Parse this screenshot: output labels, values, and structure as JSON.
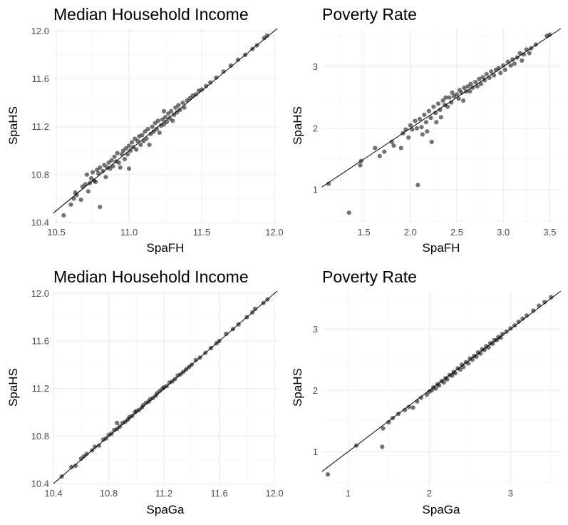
{
  "point_color": "#000000",
  "ref_line_color": "#000000",
  "chart_data": [
    {
      "type": "scatter",
      "title": "Median Household Income",
      "xlabel": "SpaFH",
      "ylabel": "SpaHS",
      "xlim": [
        10.48,
        12.02
      ],
      "ylim": [
        10.4,
        12.02
      ],
      "xticks": [
        10.5,
        11.0,
        11.5,
        12.0
      ],
      "xtick_labels": [
        "10.5",
        "11.0",
        "11.5",
        "12.0"
      ],
      "yticks": [
        10.4,
        10.8,
        11.2,
        11.6,
        12.0
      ],
      "ytick_labels": [
        "10.4",
        "10.8",
        "11.2",
        "11.6",
        "12.0"
      ],
      "reference_line": "y = x",
      "points": [
        [
          10.55,
          10.46
        ],
        [
          10.6,
          10.55
        ],
        [
          10.62,
          10.6
        ],
        [
          10.63,
          10.65
        ],
        [
          10.64,
          10.63
        ],
        [
          10.67,
          10.59
        ],
        [
          10.68,
          10.7
        ],
        [
          10.7,
          10.72
        ],
        [
          10.71,
          10.8
        ],
        [
          10.72,
          10.66
        ],
        [
          10.73,
          10.73
        ],
        [
          10.74,
          10.77
        ],
        [
          10.75,
          10.82
        ],
        [
          10.76,
          10.75
        ],
        [
          10.77,
          10.74
        ],
        [
          10.78,
          10.84
        ],
        [
          10.79,
          10.81
        ],
        [
          10.8,
          10.86
        ],
        [
          10.8,
          10.53
        ],
        [
          10.82,
          10.83
        ],
        [
          10.83,
          10.88
        ],
        [
          10.84,
          10.78
        ],
        [
          10.85,
          10.86
        ],
        [
          10.86,
          10.9
        ],
        [
          10.87,
          10.85
        ],
        [
          10.88,
          10.92
        ],
        [
          10.89,
          10.87
        ],
        [
          10.9,
          10.95
        ],
        [
          10.91,
          10.91
        ],
        [
          10.92,
          10.98
        ],
        [
          10.93,
          10.9
        ],
        [
          10.94,
          10.86
        ],
        [
          10.95,
          10.97
        ],
        [
          10.96,
          11.0
        ],
        [
          10.97,
          10.93
        ],
        [
          10.98,
          11.02
        ],
        [
          10.99,
          10.97
        ],
        [
          11.0,
          11.04
        ],
        [
          11.0,
          10.85
        ],
        [
          11.01,
          11.0
        ],
        [
          11.02,
          11.07
        ],
        [
          11.03,
          11.03
        ],
        [
          11.04,
          11.1
        ],
        [
          11.05,
          11.01
        ],
        [
          11.06,
          11.08
        ],
        [
          11.07,
          11.12
        ],
        [
          11.08,
          11.05
        ],
        [
          11.09,
          11.13
        ],
        [
          11.1,
          11.08
        ],
        [
          11.11,
          11.16
        ],
        [
          11.12,
          11.1
        ],
        [
          11.13,
          11.18
        ],
        [
          11.14,
          11.05
        ],
        [
          11.15,
          11.14
        ],
        [
          11.16,
          11.2
        ],
        [
          11.17,
          11.16
        ],
        [
          11.18,
          11.23
        ],
        [
          11.19,
          11.18
        ],
        [
          11.2,
          11.25
        ],
        [
          11.21,
          11.15
        ],
        [
          11.22,
          11.21
        ],
        [
          11.23,
          11.26
        ],
        [
          11.24,
          11.22
        ],
        [
          11.24,
          11.33
        ],
        [
          11.25,
          11.28
        ],
        [
          11.26,
          11.24
        ],
        [
          11.27,
          11.31
        ],
        [
          11.28,
          11.27
        ],
        [
          11.29,
          11.33
        ],
        [
          11.3,
          11.25
        ],
        [
          11.31,
          11.3
        ],
        [
          11.32,
          11.36
        ],
        [
          11.33,
          11.32
        ],
        [
          11.34,
          11.38
        ],
        [
          11.35,
          11.34
        ],
        [
          11.37,
          11.4
        ],
        [
          11.38,
          11.36
        ],
        [
          11.4,
          11.42
        ],
        [
          11.42,
          11.44
        ],
        [
          11.44,
          11.46
        ],
        [
          11.46,
          11.47
        ],
        [
          11.48,
          11.5
        ],
        [
          11.5,
          11.51
        ],
        [
          11.53,
          11.54
        ],
        [
          11.56,
          11.57
        ],
        [
          11.6,
          11.61
        ],
        [
          11.65,
          11.66
        ],
        [
          11.7,
          11.71
        ],
        [
          11.75,
          11.76
        ],
        [
          11.8,
          11.8
        ],
        [
          11.85,
          11.85
        ],
        [
          11.88,
          11.88
        ],
        [
          11.93,
          11.94
        ],
        [
          11.95,
          11.96
        ]
      ]
    },
    {
      "type": "scatter",
      "title": "Poverty Rate",
      "xlabel": "SpaFH",
      "ylabel": "SpaHS",
      "xlim": [
        1.05,
        3.62
      ],
      "ylim": [
        0.47,
        3.62
      ],
      "xticks": [
        1.5,
        2.0,
        2.5,
        3.0,
        3.5
      ],
      "xtick_labels": [
        "1.5",
        "2.0",
        "2.5",
        "3.0",
        "3.5"
      ],
      "yticks": [
        1,
        2,
        3
      ],
      "ytick_labels": [
        "1",
        "2",
        "3"
      ],
      "reference_line": "y = x",
      "points": [
        [
          1.12,
          1.1
        ],
        [
          1.34,
          0.63
        ],
        [
          1.46,
          1.4
        ],
        [
          1.47,
          1.47
        ],
        [
          1.62,
          1.68
        ],
        [
          1.67,
          1.55
        ],
        [
          1.72,
          1.62
        ],
        [
          1.8,
          1.78
        ],
        [
          1.82,
          1.72
        ],
        [
          1.9,
          1.68
        ],
        [
          1.92,
          1.92
        ],
        [
          1.95,
          1.98
        ],
        [
          1.98,
          1.85
        ],
        [
          2.0,
          2.05
        ],
        [
          2.02,
          1.98
        ],
        [
          2.05,
          2.12
        ],
        [
          2.07,
          2.0
        ],
        [
          2.08,
          1.08
        ],
        [
          2.1,
          2.15
        ],
        [
          2.12,
          2.02
        ],
        [
          2.13,
          1.9
        ],
        [
          2.15,
          2.22
        ],
        [
          2.17,
          2.1
        ],
        [
          2.18,
          1.95
        ],
        [
          2.2,
          2.28
        ],
        [
          2.22,
          2.17
        ],
        [
          2.23,
          1.78
        ],
        [
          2.25,
          2.35
        ],
        [
          2.27,
          2.25
        ],
        [
          2.28,
          2.1
        ],
        [
          2.3,
          2.4
        ],
        [
          2.32,
          2.3
        ],
        [
          2.33,
          2.18
        ],
        [
          2.35,
          2.45
        ],
        [
          2.37,
          2.38
        ],
        [
          2.38,
          2.5
        ],
        [
          2.4,
          2.35
        ],
        [
          2.42,
          2.5
        ],
        [
          2.44,
          2.42
        ],
        [
          2.45,
          2.58
        ],
        [
          2.47,
          2.52
        ],
        [
          2.5,
          2.55
        ],
        [
          2.52,
          2.48
        ],
        [
          2.53,
          2.62
        ],
        [
          2.55,
          2.58
        ],
        [
          2.57,
          2.45
        ],
        [
          2.58,
          2.66
        ],
        [
          2.6,
          2.6
        ],
        [
          2.62,
          2.68
        ],
        [
          2.64,
          2.6
        ],
        [
          2.65,
          2.72
        ],
        [
          2.67,
          2.66
        ],
        [
          2.7,
          2.75
        ],
        [
          2.72,
          2.68
        ],
        [
          2.74,
          2.8
        ],
        [
          2.76,
          2.72
        ],
        [
          2.78,
          2.83
        ],
        [
          2.8,
          2.78
        ],
        [
          2.82,
          2.88
        ],
        [
          2.85,
          2.82
        ],
        [
          2.87,
          2.92
        ],
        [
          2.9,
          2.86
        ],
        [
          2.92,
          2.95
        ],
        [
          2.95,
          2.98
        ],
        [
          2.97,
          2.9
        ],
        [
          3.0,
          3.02
        ],
        [
          3.02,
          2.95
        ],
        [
          3.05,
          3.08
        ],
        [
          3.08,
          3.02
        ],
        [
          3.1,
          3.12
        ],
        [
          3.12,
          3.05
        ],
        [
          3.15,
          3.15
        ],
        [
          3.18,
          3.22
        ],
        [
          3.2,
          3.1
        ],
        [
          3.22,
          3.2
        ],
        [
          3.25,
          3.28
        ],
        [
          3.28,
          3.22
        ],
        [
          3.3,
          3.3
        ],
        [
          3.35,
          3.36
        ],
        [
          3.47,
          3.5
        ],
        [
          3.5,
          3.52
        ]
      ]
    },
    {
      "type": "scatter",
      "title": "Median Household Income",
      "xlabel": "SpaGa",
      "ylabel": "SpaHS",
      "xlim": [
        10.4,
        12.02
      ],
      "ylim": [
        10.4,
        12.02
      ],
      "xticks": [
        10.4,
        10.8,
        11.2,
        11.6,
        12.0
      ],
      "xtick_labels": [
        "10.4",
        "10.8",
        "11.2",
        "11.6",
        "12.0"
      ],
      "yticks": [
        10.4,
        10.8,
        11.2,
        11.6,
        12.0
      ],
      "ytick_labels": [
        "10.4",
        "10.8",
        "11.2",
        "11.6",
        "12.0"
      ],
      "reference_line": "y = x",
      "points": [
        [
          10.46,
          10.46
        ],
        [
          10.53,
          10.54
        ],
        [
          10.56,
          10.55
        ],
        [
          10.6,
          10.61
        ],
        [
          10.62,
          10.63
        ],
        [
          10.64,
          10.65
        ],
        [
          10.68,
          10.68
        ],
        [
          10.7,
          10.71
        ],
        [
          10.73,
          10.72
        ],
        [
          10.76,
          10.77
        ],
        [
          10.78,
          10.78
        ],
        [
          10.8,
          10.81
        ],
        [
          10.82,
          10.82
        ],
        [
          10.84,
          10.85
        ],
        [
          10.86,
          10.86
        ],
        [
          10.86,
          10.91
        ],
        [
          10.88,
          10.88
        ],
        [
          10.9,
          10.91
        ],
        [
          10.92,
          10.92
        ],
        [
          10.94,
          10.94
        ],
        [
          10.95,
          10.96
        ],
        [
          10.97,
          10.97
        ],
        [
          10.99,
          11.0
        ],
        [
          11.0,
          11.01
        ],
        [
          11.02,
          11.02
        ],
        [
          11.04,
          11.04
        ],
        [
          11.05,
          11.06
        ],
        [
          11.07,
          11.08
        ],
        [
          11.09,
          11.09
        ],
        [
          11.1,
          11.11
        ],
        [
          11.12,
          11.12
        ],
        [
          11.14,
          11.14
        ],
        [
          11.15,
          11.16
        ],
        [
          11.17,
          11.18
        ],
        [
          11.19,
          11.2
        ],
        [
          11.2,
          11.21
        ],
        [
          11.22,
          11.22
        ],
        [
          11.24,
          11.25
        ],
        [
          11.26,
          11.26
        ],
        [
          11.28,
          11.28
        ],
        [
          11.3,
          11.31
        ],
        [
          11.32,
          11.32
        ],
        [
          11.34,
          11.34
        ],
        [
          11.36,
          11.36
        ],
        [
          11.38,
          11.38
        ],
        [
          11.4,
          11.4
        ],
        [
          11.43,
          11.44
        ],
        [
          11.46,
          11.46
        ],
        [
          11.5,
          11.5
        ],
        [
          11.54,
          11.54
        ],
        [
          11.58,
          11.58
        ],
        [
          11.6,
          11.6
        ],
        [
          11.65,
          11.66
        ],
        [
          11.7,
          11.7
        ],
        [
          11.74,
          11.74
        ],
        [
          11.8,
          11.8
        ],
        [
          11.84,
          11.84
        ],
        [
          11.86,
          11.87
        ],
        [
          11.92,
          11.92
        ],
        [
          11.95,
          11.95
        ]
      ]
    },
    {
      "type": "scatter",
      "title": "Poverty Rate",
      "xlabel": "SpaGa",
      "ylabel": "SpaHS",
      "xlim": [
        0.68,
        3.62
      ],
      "ylim": [
        0.48,
        3.62
      ],
      "xticks": [
        1,
        2,
        3
      ],
      "xtick_labels": [
        "1",
        "2",
        "3"
      ],
      "yticks": [
        1,
        2,
        3
      ],
      "ytick_labels": [
        "1",
        "2",
        "3"
      ],
      "reference_line": "y = x",
      "points": [
        [
          0.75,
          0.63
        ],
        [
          1.1,
          1.1
        ],
        [
          1.42,
          1.08
        ],
        [
          1.43,
          1.38
        ],
        [
          1.5,
          1.48
        ],
        [
          1.55,
          1.55
        ],
        [
          1.62,
          1.62
        ],
        [
          1.7,
          1.68
        ],
        [
          1.75,
          1.73
        ],
        [
          1.8,
          1.72
        ],
        [
          1.85,
          1.82
        ],
        [
          1.9,
          1.88
        ],
        [
          1.97,
          1.93
        ],
        [
          2.0,
          1.98
        ],
        [
          2.03,
          2.0
        ],
        [
          2.05,
          2.05
        ],
        [
          2.08,
          2.03
        ],
        [
          2.1,
          2.1
        ],
        [
          2.12,
          2.08
        ],
        [
          2.15,
          2.15
        ],
        [
          2.18,
          2.13
        ],
        [
          2.2,
          2.2
        ],
        [
          2.22,
          2.18
        ],
        [
          2.25,
          2.25
        ],
        [
          2.28,
          2.24
        ],
        [
          2.3,
          2.3
        ],
        [
          2.32,
          2.28
        ],
        [
          2.35,
          2.36
        ],
        [
          2.38,
          2.34
        ],
        [
          2.4,
          2.42
        ],
        [
          2.42,
          2.38
        ],
        [
          2.45,
          2.46
        ],
        [
          2.48,
          2.44
        ],
        [
          2.5,
          2.52
        ],
        [
          2.53,
          2.5
        ],
        [
          2.55,
          2.56
        ],
        [
          2.58,
          2.55
        ],
        [
          2.6,
          2.62
        ],
        [
          2.63,
          2.6
        ],
        [
          2.65,
          2.67
        ],
        [
          2.68,
          2.66
        ],
        [
          2.7,
          2.72
        ],
        [
          2.73,
          2.7
        ],
        [
          2.75,
          2.77
        ],
        [
          2.78,
          2.76
        ],
        [
          2.8,
          2.82
        ],
        [
          2.83,
          2.82
        ],
        [
          2.85,
          2.87
        ],
        [
          2.88,
          2.86
        ],
        [
          2.9,
          2.92
        ],
        [
          2.95,
          2.96
        ],
        [
          3.0,
          3.01
        ],
        [
          3.05,
          3.06
        ],
        [
          3.1,
          3.12
        ],
        [
          3.15,
          3.17
        ],
        [
          3.2,
          3.22
        ],
        [
          3.28,
          3.3
        ],
        [
          3.35,
          3.38
        ],
        [
          3.42,
          3.44
        ],
        [
          3.5,
          3.52
        ]
      ]
    }
  ]
}
